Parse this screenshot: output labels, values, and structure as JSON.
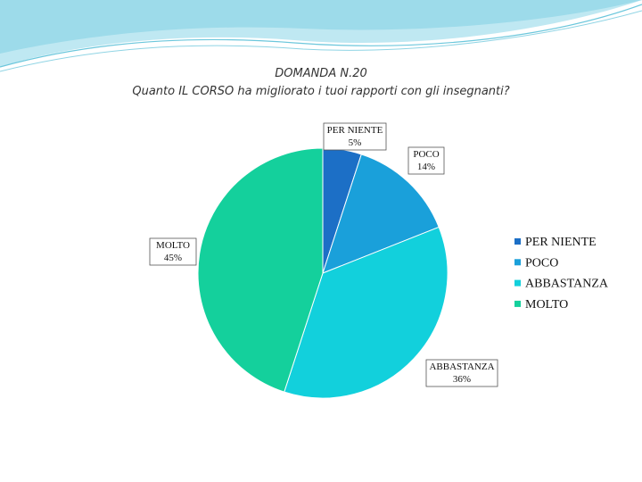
{
  "chart_data": {
    "type": "pie",
    "title": "DOMANDA N.20",
    "subtitle": "Quanto IL CORSO ha migliorato i tuoi rapporti con gli insegnanti?",
    "categories": [
      "PER NIENTE",
      "POCO",
      "ABBASTANZA",
      "MOLTO"
    ],
    "values": [
      5,
      14,
      36,
      45
    ],
    "value_labels": [
      "5%",
      "14%",
      "36%",
      "45%"
    ],
    "colors": [
      "#1c6fc6",
      "#1aa0da",
      "#12d0dc",
      "#14d09c"
    ],
    "legend": "right"
  }
}
